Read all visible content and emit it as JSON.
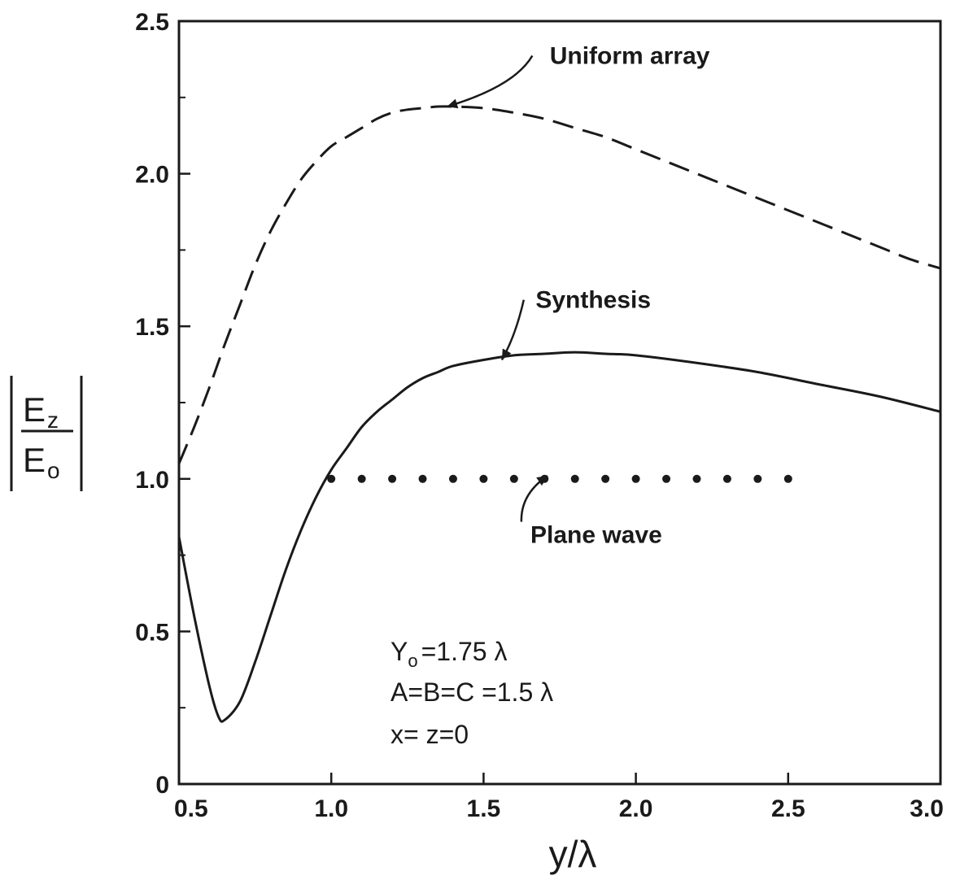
{
  "chart_data": {
    "type": "line",
    "xlabel": "y/λ",
    "ylabel": {
      "numerator": "E",
      "numerator_sub": "z",
      "denominator": "E",
      "denominator_sub": "o"
    },
    "xlim": [
      0.5,
      3.0
    ],
    "ylim": [
      0,
      2.5
    ],
    "x_ticks": [
      {
        "value": 0.5,
        "label": "0.5"
      },
      {
        "value": 1.0,
        "label": "1.0"
      },
      {
        "value": 1.5,
        "label": "1.5"
      },
      {
        "value": 2.0,
        "label": "2.0"
      },
      {
        "value": 2.5,
        "label": "2.5"
      },
      {
        "value": 3.0,
        "label": "3.0"
      }
    ],
    "y_ticks": [
      {
        "value": 0,
        "label": "0"
      },
      {
        "value": 0.5,
        "label": "0.5"
      },
      {
        "value": 1.0,
        "label": "1.0"
      },
      {
        "value": 1.5,
        "label": "1.5"
      },
      {
        "value": 2.0,
        "label": "2.0"
      },
      {
        "value": 2.5,
        "label": "2.5"
      }
    ],
    "grid": false,
    "series": [
      {
        "name": "Uniform array",
        "style": "dashed",
        "x": [
          0.5,
          0.55,
          0.6,
          0.65,
          0.7,
          0.75,
          0.8,
          0.85,
          0.9,
          0.95,
          1.0,
          1.05,
          1.1,
          1.15,
          1.2,
          1.25,
          1.3,
          1.35,
          1.4,
          1.5,
          1.6,
          1.7,
          1.8,
          1.9,
          2.0,
          2.1,
          2.2,
          2.3,
          2.4,
          2.5,
          2.6,
          2.7,
          2.8,
          2.9,
          3.0
        ],
        "y": [
          1.05,
          1.17,
          1.3,
          1.44,
          1.57,
          1.7,
          1.81,
          1.9,
          1.98,
          2.04,
          2.09,
          2.12,
          2.15,
          2.18,
          2.2,
          2.21,
          2.215,
          2.22,
          2.22,
          2.215,
          2.2,
          2.18,
          2.15,
          2.12,
          2.08,
          2.04,
          2.0,
          1.96,
          1.92,
          1.88,
          1.84,
          1.8,
          1.76,
          1.72,
          1.69
        ]
      },
      {
        "name": "Synthesis",
        "style": "solid",
        "x": [
          0.5,
          0.55,
          0.6,
          0.63,
          0.65,
          0.7,
          0.75,
          0.8,
          0.85,
          0.9,
          0.95,
          1.0,
          1.05,
          1.1,
          1.15,
          1.2,
          1.25,
          1.3,
          1.35,
          1.4,
          1.5,
          1.6,
          1.7,
          1.8,
          1.9,
          2.0,
          2.2,
          2.4,
          2.6,
          2.8,
          3.0
        ],
        "y": [
          0.81,
          0.55,
          0.32,
          0.22,
          0.21,
          0.27,
          0.4,
          0.55,
          0.7,
          0.83,
          0.94,
          1.03,
          1.1,
          1.17,
          1.22,
          1.26,
          1.3,
          1.33,
          1.35,
          1.37,
          1.39,
          1.405,
          1.41,
          1.415,
          1.41,
          1.405,
          1.38,
          1.35,
          1.31,
          1.27,
          1.22
        ]
      },
      {
        "name": "Plane wave",
        "style": "dotted",
        "x": [
          1.0,
          1.1,
          1.2,
          1.3,
          1.4,
          1.5,
          1.6,
          1.7,
          1.8,
          1.9,
          2.0,
          2.1,
          2.2,
          2.3,
          2.4,
          2.5
        ],
        "y": [
          1.0,
          1.0,
          1.0,
          1.0,
          1.0,
          1.0,
          1.0,
          1.0,
          1.0,
          1.0,
          1.0,
          1.0,
          1.0,
          1.0,
          1.0,
          1.0
        ]
      }
    ],
    "annotations": [
      {
        "id": "uniform",
        "text": "Uniform array",
        "label_x": 1.98,
        "label_y": 2.36,
        "pointer_to": [
          1.38,
          2.22
        ]
      },
      {
        "id": "synthesis",
        "text": "Synthesis",
        "label_x": 1.86,
        "label_y": 1.56,
        "pointer_to": [
          1.56,
          1.39
        ]
      },
      {
        "id": "plane",
        "text": "Plane wave",
        "label_x": 1.87,
        "label_y": 0.79,
        "pointer_to": [
          1.71,
          1.01
        ]
      }
    ],
    "parameters": [
      {
        "main": "Y",
        "sub": "o",
        "rest": "=1.75 λ"
      },
      {
        "main": "A=B=C =1.5 λ",
        "sub": "",
        "rest": ""
      },
      {
        "main": "x= z=0",
        "sub": "",
        "rest": ""
      }
    ]
  }
}
